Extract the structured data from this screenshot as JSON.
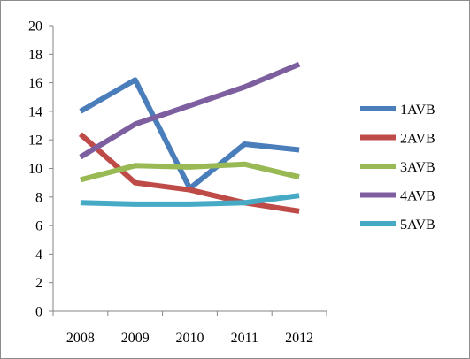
{
  "chart_data": {
    "type": "line",
    "title": "",
    "xlabel": "",
    "ylabel": "",
    "categories": [
      "2008",
      "2009",
      "2010",
      "2011",
      "2012"
    ],
    "ylim": [
      0,
      20
    ],
    "yticks": [
      "0",
      "2",
      "4",
      "6",
      "8",
      "10",
      "12",
      "14",
      "16",
      "18",
      "20"
    ],
    "grid": false,
    "legend": "right",
    "series": [
      {
        "name": "1AVB",
        "color": "#4a7ebb",
        "values": [
          14.0,
          16.2,
          8.6,
          11.7,
          11.3
        ]
      },
      {
        "name": "2AVB",
        "color": "#be4b48",
        "values": [
          12.4,
          9.0,
          8.5,
          7.6,
          7.0
        ]
      },
      {
        "name": "3AVB",
        "color": "#98b954",
        "values": [
          9.2,
          10.2,
          10.1,
          10.3,
          9.4
        ]
      },
      {
        "name": "4AVB",
        "color": "#7d5fa0",
        "values": [
          10.8,
          13.1,
          14.4,
          15.7,
          17.3
        ]
      },
      {
        "name": "5AVB",
        "color": "#46aac5",
        "values": [
          7.6,
          7.5,
          7.5,
          7.6,
          8.1
        ]
      }
    ]
  }
}
